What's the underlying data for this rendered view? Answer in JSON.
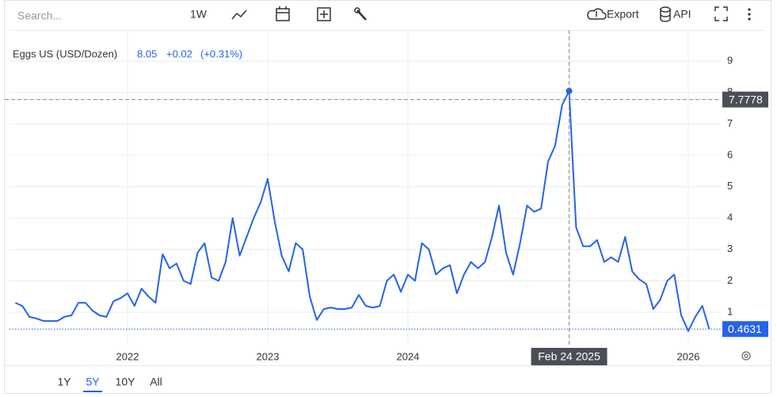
{
  "ui": {
    "search_placeholder": "Search...",
    "interval": "1W",
    "export": "Export",
    "api": "API",
    "ranges": [
      "1Y",
      "5Y",
      "10Y",
      "All"
    ],
    "active_range": 1
  },
  "chart_data": {
    "type": "line",
    "title": "Eggs US (USD/Dozen)",
    "change": "+0.02",
    "change_pct": "(+0.31%)",
    "hover_index": 79,
    "crosshair_y": 7.7778,
    "color": "#2563eb",
    "categories": [
      null,
      null,
      null,
      null,
      null,
      null,
      null,
      null,
      null,
      null,
      null,
      null,
      null,
      null,
      null,
      null,
      "2022",
      null,
      null,
      null,
      null,
      null,
      null,
      null,
      null,
      null,
      null,
      null,
      null,
      null,
      null,
      null,
      null,
      null,
      null,
      null,
      "2023",
      null,
      null,
      null,
      null,
      null,
      null,
      null,
      null,
      null,
      null,
      null,
      null,
      null,
      null,
      null,
      null,
      null,
      null,
      null,
      "2024",
      null,
      null,
      null,
      null,
      null,
      null,
      null,
      null,
      null,
      null,
      null,
      null,
      null,
      null,
      null,
      null,
      null,
      null,
      null,
      null,
      null,
      null,
      "Feb 24 2025",
      null,
      null,
      null,
      null,
      null,
      null,
      null,
      null,
      null,
      null,
      null,
      null,
      null,
      null,
      null,
      null,
      "2026",
      null,
      null,
      null
    ],
    "values": [
      1.3,
      1.2,
      0.85,
      0.8,
      0.72,
      0.72,
      0.72,
      0.85,
      0.9,
      1.3,
      1.3,
      1.05,
      0.9,
      0.85,
      1.35,
      1.45,
      1.6,
      1.2,
      1.75,
      1.5,
      1.3,
      2.85,
      2.4,
      2.55,
      2.0,
      1.9,
      2.9,
      3.2,
      2.1,
      2.0,
      2.6,
      4.0,
      2.8,
      3.4,
      4.0,
      4.5,
      5.25,
      3.9,
      2.8,
      2.3,
      3.2,
      3.0,
      1.5,
      0.75,
      1.1,
      1.15,
      1.1,
      1.1,
      1.15,
      1.55,
      1.2,
      1.15,
      1.2,
      2.0,
      2.2,
      1.65,
      2.2,
      2.0,
      3.2,
      3.0,
      2.2,
      2.4,
      2.5,
      1.6,
      2.2,
      2.6,
      2.4,
      2.6,
      3.4,
      4.4,
      2.9,
      2.2,
      3.2,
      4.4,
      4.2,
      4.3,
      5.8,
      6.3,
      7.6,
      8.05,
      3.7,
      3.1,
      3.1,
      3.3,
      2.6,
      2.75,
      2.6,
      3.4,
      2.3,
      2.05,
      1.9,
      1.1,
      1.4,
      2.0,
      2.2,
      0.9,
      0.4,
      0.85,
      1.2,
      0.4631
    ],
    "ylim": [
      0,
      10
    ],
    "yticks": [
      1,
      2,
      3,
      4,
      5,
      6,
      7,
      8,
      9
    ],
    "grid": true
  }
}
